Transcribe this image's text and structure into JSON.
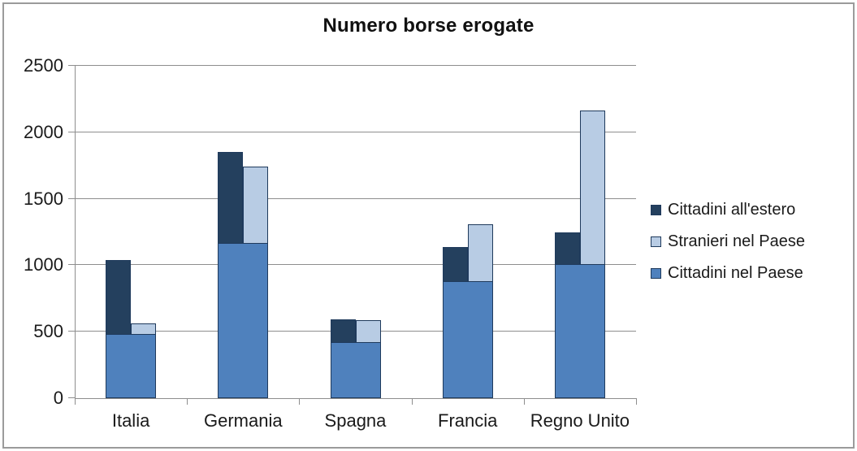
{
  "title": "Numero borse erogate",
  "chart_data": {
    "type": "bar",
    "subtype": "stacked-grouped",
    "title": "Numero borse erogate",
    "categories": [
      "Italia",
      "Germania",
      "Spagna",
      "Francia",
      "Regno Unito"
    ],
    "series": [
      {
        "name": "Cittadini nel Paese",
        "stack": "shared-base",
        "color": "#4F81BD",
        "values": [
          480,
          1170,
          420,
          880,
          1010
        ]
      },
      {
        "name": "Cittadini all'estero",
        "stack": "left-column-on-base",
        "color": "#24405E",
        "values": [
          560,
          685,
          175,
          260,
          235
        ],
        "stack_totals": [
          1040,
          1855,
          595,
          1140,
          1245
        ]
      },
      {
        "name": "Stranieri nel Paese",
        "stack": "right-column-on-base",
        "color": "#B8CCE4",
        "values": [
          80,
          570,
          170,
          430,
          1155
        ],
        "stack_totals": [
          560,
          1740,
          590,
          1310,
          2165
        ]
      }
    ],
    "ylim": [
      0,
      2500
    ],
    "yticks": [
      0,
      500,
      1000,
      1500,
      2000,
      2500
    ],
    "xlabel": "",
    "ylabel": "",
    "grid": "horizontal",
    "legend_position": "right"
  },
  "legend": {
    "items": [
      {
        "label": "Cittadini all'estero",
        "color": "#24405E"
      },
      {
        "label": "Stranieri nel Paese",
        "color": "#B8CCE4"
      },
      {
        "label": "Cittadini nel Paese",
        "color": "#4F81BD"
      }
    ]
  },
  "style": {
    "bar_border_color": "#1F3A5C",
    "grid_color": "#8E8E8E",
    "axis_color": "#8E8E8E",
    "text_color": "#1A1A1A",
    "frame_border_color": "#9B9B9B",
    "background": "#FFFFFF"
  }
}
